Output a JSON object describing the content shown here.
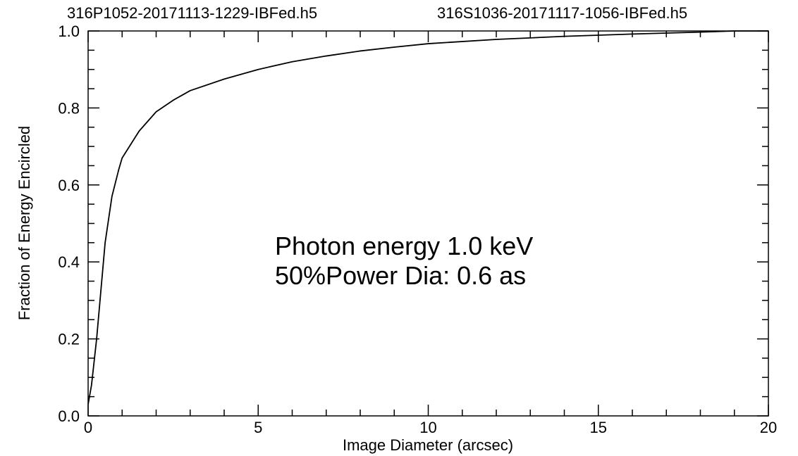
{
  "chart_data": {
    "type": "line",
    "title_left": "316P1052-20171113-1229-IBFed.h5",
    "title_right": "316S1036-20171117-1056-IBFed.h5",
    "xlabel": "Image Diameter (arcsec)",
    "ylabel": "Fraction of Energy Encircled",
    "annotations": [
      "Photon energy  1.0 keV",
      "50%Power Dia:  0.6 as"
    ],
    "color": "#000000",
    "x": [
      0,
      0.1,
      0.25,
      0.4,
      0.5,
      0.7,
      0.9,
      1.0,
      1.5,
      2,
      2.5,
      3,
      4,
      5,
      6,
      7,
      8,
      9,
      10,
      12,
      14,
      16,
      18,
      19,
      20
    ],
    "values": [
      0.03,
      0.08,
      0.2,
      0.35,
      0.45,
      0.57,
      0.64,
      0.67,
      0.74,
      0.79,
      0.82,
      0.845,
      0.875,
      0.9,
      0.92,
      0.935,
      0.948,
      0.958,
      0.967,
      0.978,
      0.986,
      0.992,
      0.997,
      1.0,
      1.0
    ],
    "xlim": [
      0,
      20
    ],
    "ylim": [
      0,
      1
    ],
    "xticks": [
      0,
      5,
      10,
      15,
      20
    ],
    "yticks": [
      {
        "value": 0,
        "label": "0.0"
      },
      0.2,
      0.4,
      0.6,
      0.8,
      {
        "value": 1,
        "label": "1.0"
      }
    ],
    "xminorticks": [
      1,
      2,
      3,
      4,
      6,
      7,
      8,
      9,
      11,
      12,
      13,
      14,
      16,
      17,
      18,
      19
    ],
    "yminorticks": [
      0.05,
      0.1,
      0.15,
      0.25,
      0.3,
      0.35,
      0.45,
      0.5,
      0.55,
      0.65,
      0.7,
      0.75,
      0.85,
      0.9,
      0.95
    ]
  }
}
